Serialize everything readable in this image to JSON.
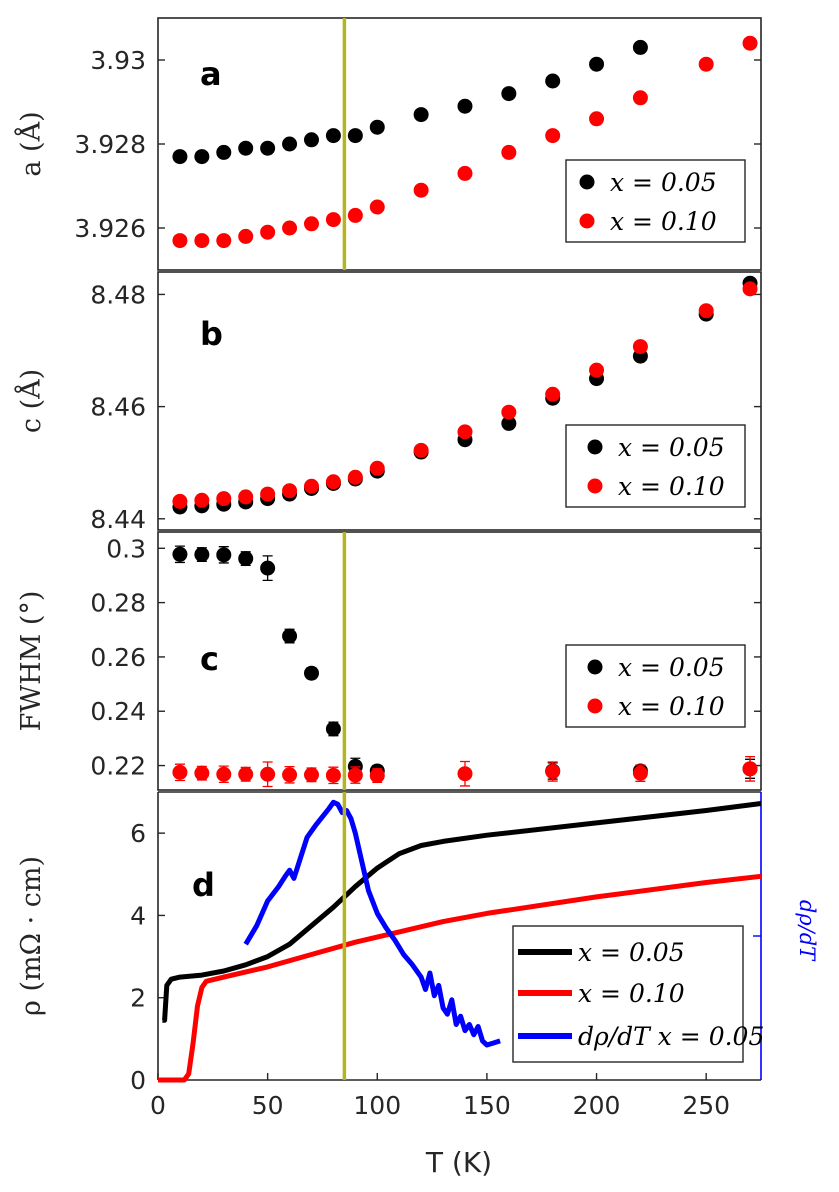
{
  "chart_data": [
    {
      "panel": "a",
      "type": "scatter",
      "ylabel": "a (Å)",
      "xlim": [
        0,
        275
      ],
      "ylim": [
        3.925,
        3.931
      ],
      "yticks": [
        "3.926",
        "3.928",
        "3.93"
      ],
      "ytick_values": [
        3.926,
        3.928,
        3.93
      ],
      "legend": [
        "x = 0.05",
        "x = 0.10"
      ],
      "legend_position": "bottom-right",
      "series": [
        {
          "name": "x = 0.05",
          "color": "#000000",
          "x": [
            10,
            20,
            30,
            40,
            50,
            60,
            70,
            80,
            90,
            100,
            120,
            140,
            160,
            180,
            200,
            220
          ],
          "y": [
            3.9277,
            3.9277,
            3.9278,
            3.9279,
            3.9279,
            3.928,
            3.9281,
            3.9282,
            3.9282,
            3.9284,
            3.9287,
            3.9289,
            3.9292,
            3.9295,
            3.9299,
            3.9303
          ]
        },
        {
          "name": "x = 0.10",
          "color": "#ff0000",
          "x": [
            10,
            20,
            30,
            40,
            50,
            60,
            70,
            80,
            90,
            100,
            120,
            140,
            160,
            180,
            200,
            220,
            250,
            270
          ],
          "y": [
            3.9257,
            3.9257,
            3.9257,
            3.9258,
            3.9259,
            3.926,
            3.9261,
            3.9262,
            3.9263,
            3.9265,
            3.9269,
            3.9273,
            3.9278,
            3.9282,
            3.9286,
            3.9291,
            3.9299,
            3.9304
          ]
        }
      ]
    },
    {
      "panel": "b",
      "type": "scatter",
      "ylabel": "c (Å)",
      "xlim": [
        0,
        275
      ],
      "ylim": [
        8.438,
        8.484
      ],
      "yticks": [
        "8.44",
        "8.46",
        "8.48"
      ],
      "ytick_values": [
        8.44,
        8.46,
        8.48
      ],
      "legend": [
        "x = 0.05",
        "x = 0.10"
      ],
      "legend_position": "bottom-right",
      "series": [
        {
          "name": "x = 0.05",
          "color": "#000000",
          "x": [
            10,
            20,
            30,
            40,
            50,
            60,
            70,
            80,
            90,
            100,
            120,
            140,
            160,
            180,
            200,
            220,
            250,
            270
          ],
          "y": [
            8.4421,
            8.4423,
            8.4426,
            8.443,
            8.4436,
            8.4444,
            8.4454,
            8.4463,
            8.4471,
            8.4485,
            8.4519,
            8.4541,
            8.457,
            8.4615,
            8.465,
            8.469,
            8.4765,
            8.482
          ]
        },
        {
          "name": "x = 0.10",
          "color": "#ff0000",
          "x": [
            10,
            20,
            30,
            40,
            50,
            60,
            70,
            80,
            90,
            100,
            120,
            140,
            160,
            180,
            200,
            220,
            250,
            270
          ],
          "y": [
            8.4431,
            8.4433,
            8.4436,
            8.4439,
            8.4444,
            8.445,
            8.4458,
            8.4466,
            8.4474,
            8.449,
            8.4522,
            8.4555,
            8.459,
            8.4622,
            8.4665,
            8.4707,
            8.4771,
            8.481
          ]
        }
      ]
    },
    {
      "panel": "c",
      "type": "scatter",
      "ylabel": "FWHM (°)",
      "xlim": [
        0,
        275
      ],
      "ylim": [
        0.211,
        0.306
      ],
      "yticks": [
        "0.22",
        "0.24",
        "0.26",
        "0.28",
        "0.3"
      ],
      "ytick_values": [
        0.22,
        0.24,
        0.26,
        0.28,
        0.3
      ],
      "legend": [
        "x = 0.05",
        "x = 0.10"
      ],
      "legend_position": "right",
      "series": [
        {
          "name": "x = 0.05",
          "color": "#000000",
          "x": [
            10,
            20,
            30,
            40,
            50,
            60,
            70,
            80,
            90,
            100,
            180,
            220,
            270
          ],
          "y": [
            0.2978,
            0.2977,
            0.2976,
            0.2962,
            0.2927,
            0.2677,
            0.254,
            0.2335,
            0.2197,
            0.218,
            0.218,
            0.218,
            0.2188
          ],
          "err": [
            0.003,
            0.0025,
            0.003,
            0.0025,
            0.0045,
            0.0025,
            0.002,
            0.0025,
            0.003,
            0.002,
            0.003,
            0.002,
            0.0035
          ]
        },
        {
          "name": "x = 0.10",
          "color": "#ff0000",
          "x": [
            10,
            20,
            30,
            40,
            50,
            60,
            70,
            80,
            90,
            100,
            140,
            180,
            220,
            270
          ],
          "y": [
            0.2175,
            0.2172,
            0.2168,
            0.2168,
            0.2168,
            0.2166,
            0.2166,
            0.2164,
            0.2165,
            0.2163,
            0.217,
            0.2178,
            0.2172,
            0.2188
          ],
          "err": [
            0.003,
            0.0025,
            0.003,
            0.0025,
            0.0045,
            0.003,
            0.0025,
            0.003,
            0.003,
            0.0025,
            0.0045,
            0.0035,
            0.003,
            0.0045
          ]
        }
      ]
    },
    {
      "panel": "d",
      "type": "line",
      "xlabel": "T (K)",
      "ylabel": "ρ (mΩ · cm)",
      "ylabel_right": "dρ/dT",
      "xlim": [
        0,
        275
      ],
      "ylim": [
        0,
        7
      ],
      "xticks": [
        "0",
        "50",
        "100",
        "150",
        "200",
        "250"
      ],
      "xtick_values": [
        0,
        50,
        100,
        150,
        200,
        250
      ],
      "yticks": [
        "0",
        "2",
        "4",
        "6"
      ],
      "ytick_values": [
        0,
        2,
        4,
        6
      ],
      "legend": [
        "x = 0.05",
        "x = 0.10",
        "dρ/dT  x = 0.05"
      ],
      "legend_position": "bottom-right",
      "series": [
        {
          "name": "x = 0.05",
          "color": "#000000",
          "x": [
            2,
            3,
            4,
            6,
            10,
            20,
            30,
            40,
            50,
            60,
            70,
            80,
            90,
            100,
            110,
            120,
            130,
            150,
            200,
            250,
            275
          ],
          "y": [
            1.45,
            1.45,
            2.3,
            2.45,
            2.5,
            2.55,
            2.65,
            2.8,
            3.0,
            3.3,
            3.75,
            4.2,
            4.7,
            5.15,
            5.5,
            5.7,
            5.8,
            5.95,
            6.25,
            6.55,
            6.72
          ]
        },
        {
          "name": "x = 0.10",
          "color": "#ff0000",
          "x": [
            0,
            12,
            14,
            16,
            18,
            20,
            22,
            30,
            50,
            70,
            90,
            110,
            130,
            150,
            200,
            250,
            275
          ],
          "y": [
            0.0,
            0.0,
            0.15,
            0.9,
            1.8,
            2.25,
            2.4,
            2.5,
            2.75,
            3.05,
            3.35,
            3.6,
            3.85,
            4.05,
            4.45,
            4.8,
            4.95
          ]
        },
        {
          "name": "dρ/dT  x = 0.05",
          "color": "#0000ff",
          "axis": "right",
          "x": [
            40,
            45,
            50,
            55,
            58,
            60,
            62,
            65,
            68,
            72,
            75,
            78,
            80,
            82,
            84,
            86,
            88,
            90,
            93,
            96,
            100,
            104,
            108,
            112,
            116,
            120,
            122,
            124,
            126,
            128,
            130,
            132,
            134,
            136,
            138,
            140,
            142,
            144,
            146,
            148,
            150,
            153,
            156
          ],
          "y": [
            3.3,
            3.75,
            4.35,
            4.7,
            4.95,
            5.1,
            4.9,
            5.4,
            5.9,
            6.2,
            6.4,
            6.6,
            6.75,
            6.7,
            6.5,
            6.55,
            6.35,
            6.0,
            5.3,
            4.6,
            4.05,
            3.7,
            3.4,
            3.05,
            2.8,
            2.5,
            2.2,
            2.6,
            2.05,
            2.3,
            1.75,
            1.6,
            1.95,
            1.35,
            1.55,
            1.2,
            1.35,
            1.1,
            1.3,
            0.95,
            0.85,
            0.9,
            0.95
          ]
        }
      ],
      "vertical_marker": {
        "x": 85,
        "color": "#b5b522",
        "panels": [
          "a",
          "c",
          "d"
        ]
      }
    }
  ]
}
